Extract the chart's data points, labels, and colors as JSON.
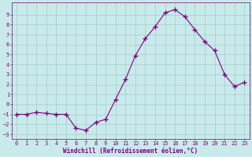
{
  "x": [
    0,
    1,
    2,
    3,
    4,
    5,
    6,
    7,
    8,
    9,
    10,
    11,
    12,
    13,
    14,
    15,
    16,
    17,
    18,
    19,
    20,
    21,
    22,
    23
  ],
  "y": [
    -1,
    -1,
    -0.8,
    -0.9,
    -1,
    -1,
    -2.4,
    -2.6,
    -1.8,
    -1.5,
    0.5,
    2.5,
    4.9,
    6.6,
    7.8,
    9.2,
    9.5,
    8.8,
    7.5,
    6.3,
    5.4,
    3.0,
    1.8,
    2.2
  ],
  "line_color": "#800080",
  "marker_color": "#800080",
  "bg_color": "#c8eaea",
  "grid_color": "#a0cccc",
  "xlabel": "Windchill (Refroidissement éolien,°C)",
  "xlim": [
    -0.5,
    23.5
  ],
  "ylim": [
    -3.5,
    10.2
  ],
  "yticks": [
    -3,
    -2,
    -1,
    0,
    1,
    2,
    3,
    4,
    5,
    6,
    7,
    8,
    9
  ],
  "xticks": [
    0,
    1,
    2,
    3,
    4,
    5,
    6,
    7,
    8,
    9,
    10,
    11,
    12,
    13,
    14,
    15,
    16,
    17,
    18,
    19,
    20,
    21,
    22,
    23
  ],
  "tick_color": "#800080",
  "label_color": "#800080",
  "tick_fontsize": 5.0,
  "xlabel_fontsize": 5.5
}
